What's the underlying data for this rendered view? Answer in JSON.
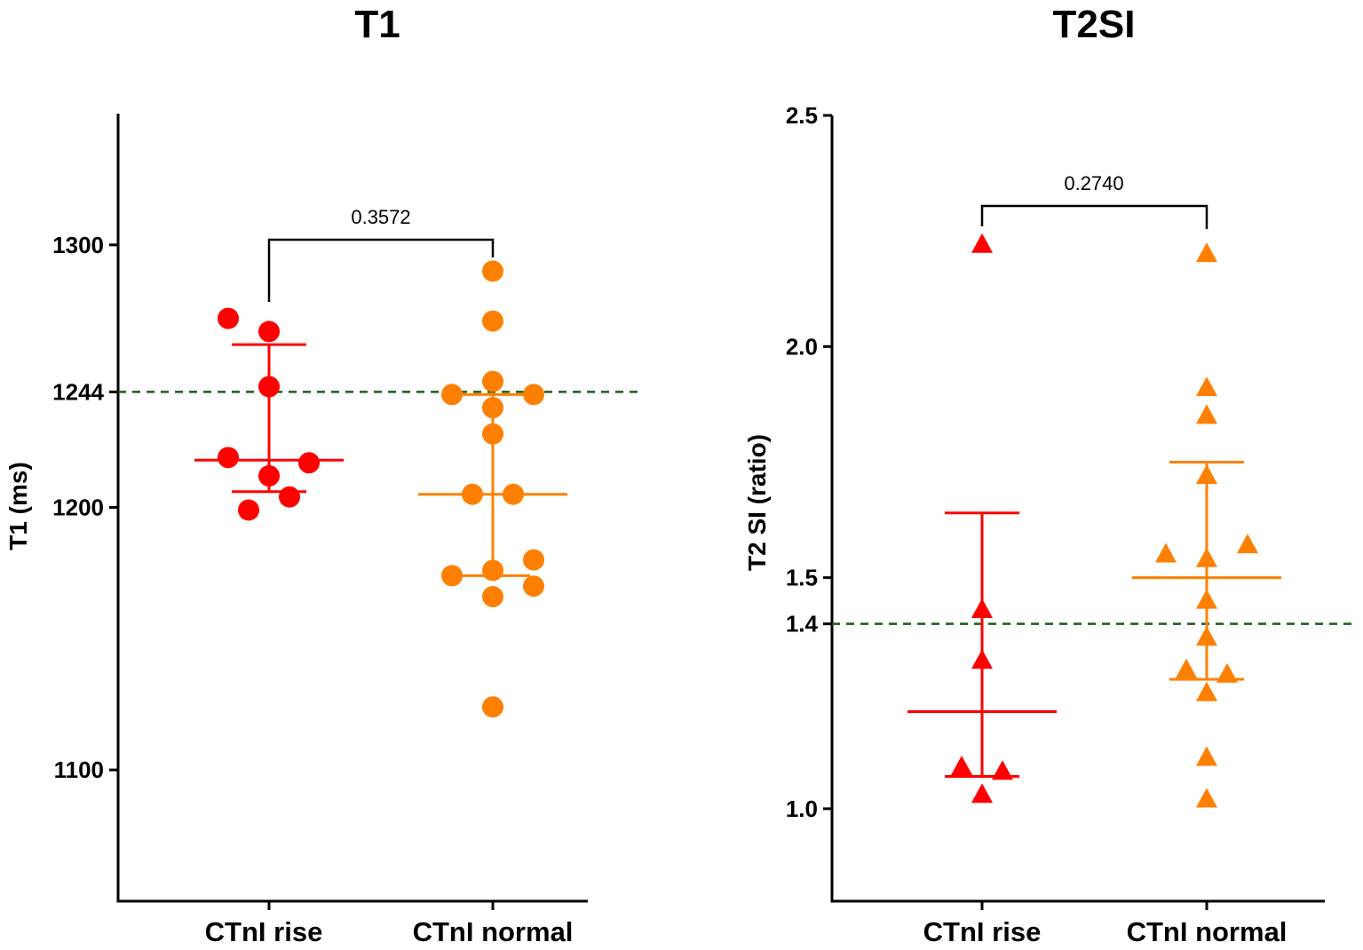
{
  "chart_data": [
    {
      "type": "scatter",
      "title": "T1",
      "ylabel": "T1 (ms)",
      "ylim": [
        1050,
        1350
      ],
      "yticks": [
        "1100",
        "1200",
        "1244",
        "1300"
      ],
      "ytick_values": [
        1100,
        1200,
        1244,
        1300
      ],
      "reference_line": 1244,
      "grid": false,
      "categories": [
        "CTnI rise",
        "CTnI normal"
      ],
      "series": [
        {
          "category": "CTnI rise",
          "marker": "circle",
          "color": "#ff0000",
          "values": [
            1272,
            1267,
            1246,
            1219,
            1217,
            1212,
            1204,
            1199
          ],
          "center": 1218,
          "lower": 1206,
          "upper": 1262
        },
        {
          "category": "CTnI normal",
          "marker": "circle",
          "color": "#ff8000",
          "values": [
            1290,
            1271,
            1248,
            1243,
            1243,
            1238,
            1228,
            1205,
            1205,
            1180,
            1176,
            1174,
            1170,
            1166,
            1124
          ],
          "center": 1205,
          "lower": 1174,
          "upper": 1243
        }
      ],
      "comparison": {
        "label": "0.3572"
      }
    },
    {
      "type": "scatter",
      "title": "T2SI",
      "ylabel": "T2 SI (ratio)",
      "ylim": [
        0.8,
        2.5
      ],
      "yticks": [
        "1.0",
        "1.4",
        "1.5",
        "2.0",
        "2.5"
      ],
      "ytick_values": [
        1.0,
        1.4,
        1.5,
        2.0,
        2.5
      ],
      "reference_line": 1.4,
      "grid": false,
      "categories": [
        "CTnI rise",
        "CTnI normal"
      ],
      "series": [
        {
          "category": "CTnI rise",
          "marker": "triangle",
          "color": "#ff0000",
          "values": [
            2.22,
            1.43,
            1.32,
            1.09,
            1.08,
            1.03
          ],
          "center": 1.21,
          "lower": 1.07,
          "upper": 1.64
        },
        {
          "category": "CTnI normal",
          "marker": "triangle",
          "color": "#ff8000",
          "values": [
            2.2,
            1.91,
            1.85,
            1.72,
            1.55,
            1.57,
            1.54,
            1.45,
            1.37,
            1.3,
            1.29,
            1.25,
            1.11,
            1.02
          ],
          "center": 1.5,
          "lower": 1.28,
          "upper": 1.75
        }
      ],
      "comparison": {
        "label": "0.2740"
      }
    }
  ],
  "colors": {
    "reference_line": "#1a5c1a",
    "axis": "#000000"
  }
}
